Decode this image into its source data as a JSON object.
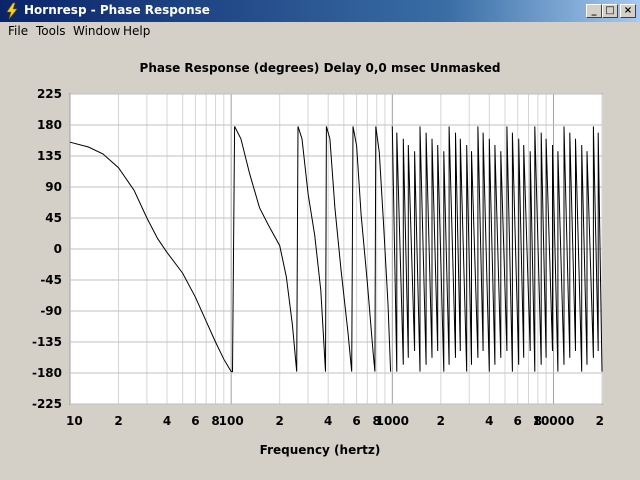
{
  "window": {
    "title": "Hornresp - Phase Response",
    "buttons": {
      "minimize": "_",
      "maximize": "□",
      "close": "×"
    }
  },
  "menu": {
    "items": [
      {
        "label": "File"
      },
      {
        "label": "Tools"
      },
      {
        "label": "Window"
      },
      {
        "label": "Help"
      }
    ]
  },
  "chart_data": {
    "type": "line",
    "title": "Phase Response (degrees)   Delay 0,0 msec   Unmasked",
    "xlabel": "Frequency (hertz)",
    "ylabel": "",
    "xscale": "log",
    "xlim": [
      10,
      20000
    ],
    "ylim": [
      -225,
      225
    ],
    "y_ticks": [
      "225",
      "180",
      "135",
      "90",
      "45",
      "0",
      "-45",
      "-90",
      "-135",
      "-180",
      "-225"
    ],
    "x_ticks": [
      {
        "value": 10,
        "label": "10"
      },
      {
        "value": 20,
        "label": "2"
      },
      {
        "value": 40,
        "label": "4"
      },
      {
        "value": 60,
        "label": "6"
      },
      {
        "value": 80,
        "label": "8"
      },
      {
        "value": 100,
        "label": "100"
      },
      {
        "value": 200,
        "label": "2"
      },
      {
        "value": 400,
        "label": "4"
      },
      {
        "value": 600,
        "label": "6"
      },
      {
        "value": 800,
        "label": "8"
      },
      {
        "value": 1000,
        "label": "1000"
      },
      {
        "value": 2000,
        "label": "2"
      },
      {
        "value": 4000,
        "label": "4"
      },
      {
        "value": 6000,
        "label": "6"
      },
      {
        "value": 8000,
        "label": "8"
      },
      {
        "value": 10000,
        "label": "10000"
      },
      {
        "value": 20000,
        "label": "2"
      }
    ],
    "grid": true,
    "series": [
      {
        "x": [
          10,
          13,
          16,
          20,
          25,
          30,
          35,
          40,
          50,
          60,
          70,
          80,
          90,
          100,
          102,
          105,
          115,
          130,
          150,
          170,
          200,
          220,
          240,
          255,
          260,
          275,
          300,
          330,
          360,
          385,
          390,
          410,
          440,
          480,
          530,
          560,
          570,
          600,
          640,
          700,
          760,
          780,
          790,
          830,
          880,
          940,
          975
        ],
        "y": [
          155,
          148,
          138,
          118,
          85,
          45,
          15,
          -5,
          -35,
          -70,
          -105,
          -135,
          -160,
          -178,
          -178,
          178,
          160,
          110,
          60,
          35,
          5,
          -40,
          -110,
          -178,
          178,
          160,
          80,
          20,
          -60,
          -178,
          178,
          160,
          60,
          -30,
          -120,
          -178,
          178,
          150,
          50,
          -50,
          -150,
          -178,
          178,
          140,
          40,
          -80,
          -178
        ]
      }
    ],
    "dense_region": {
      "x_start": 1000,
      "x_end": 20000,
      "y_min": -178,
      "y_max": 178
    }
  }
}
